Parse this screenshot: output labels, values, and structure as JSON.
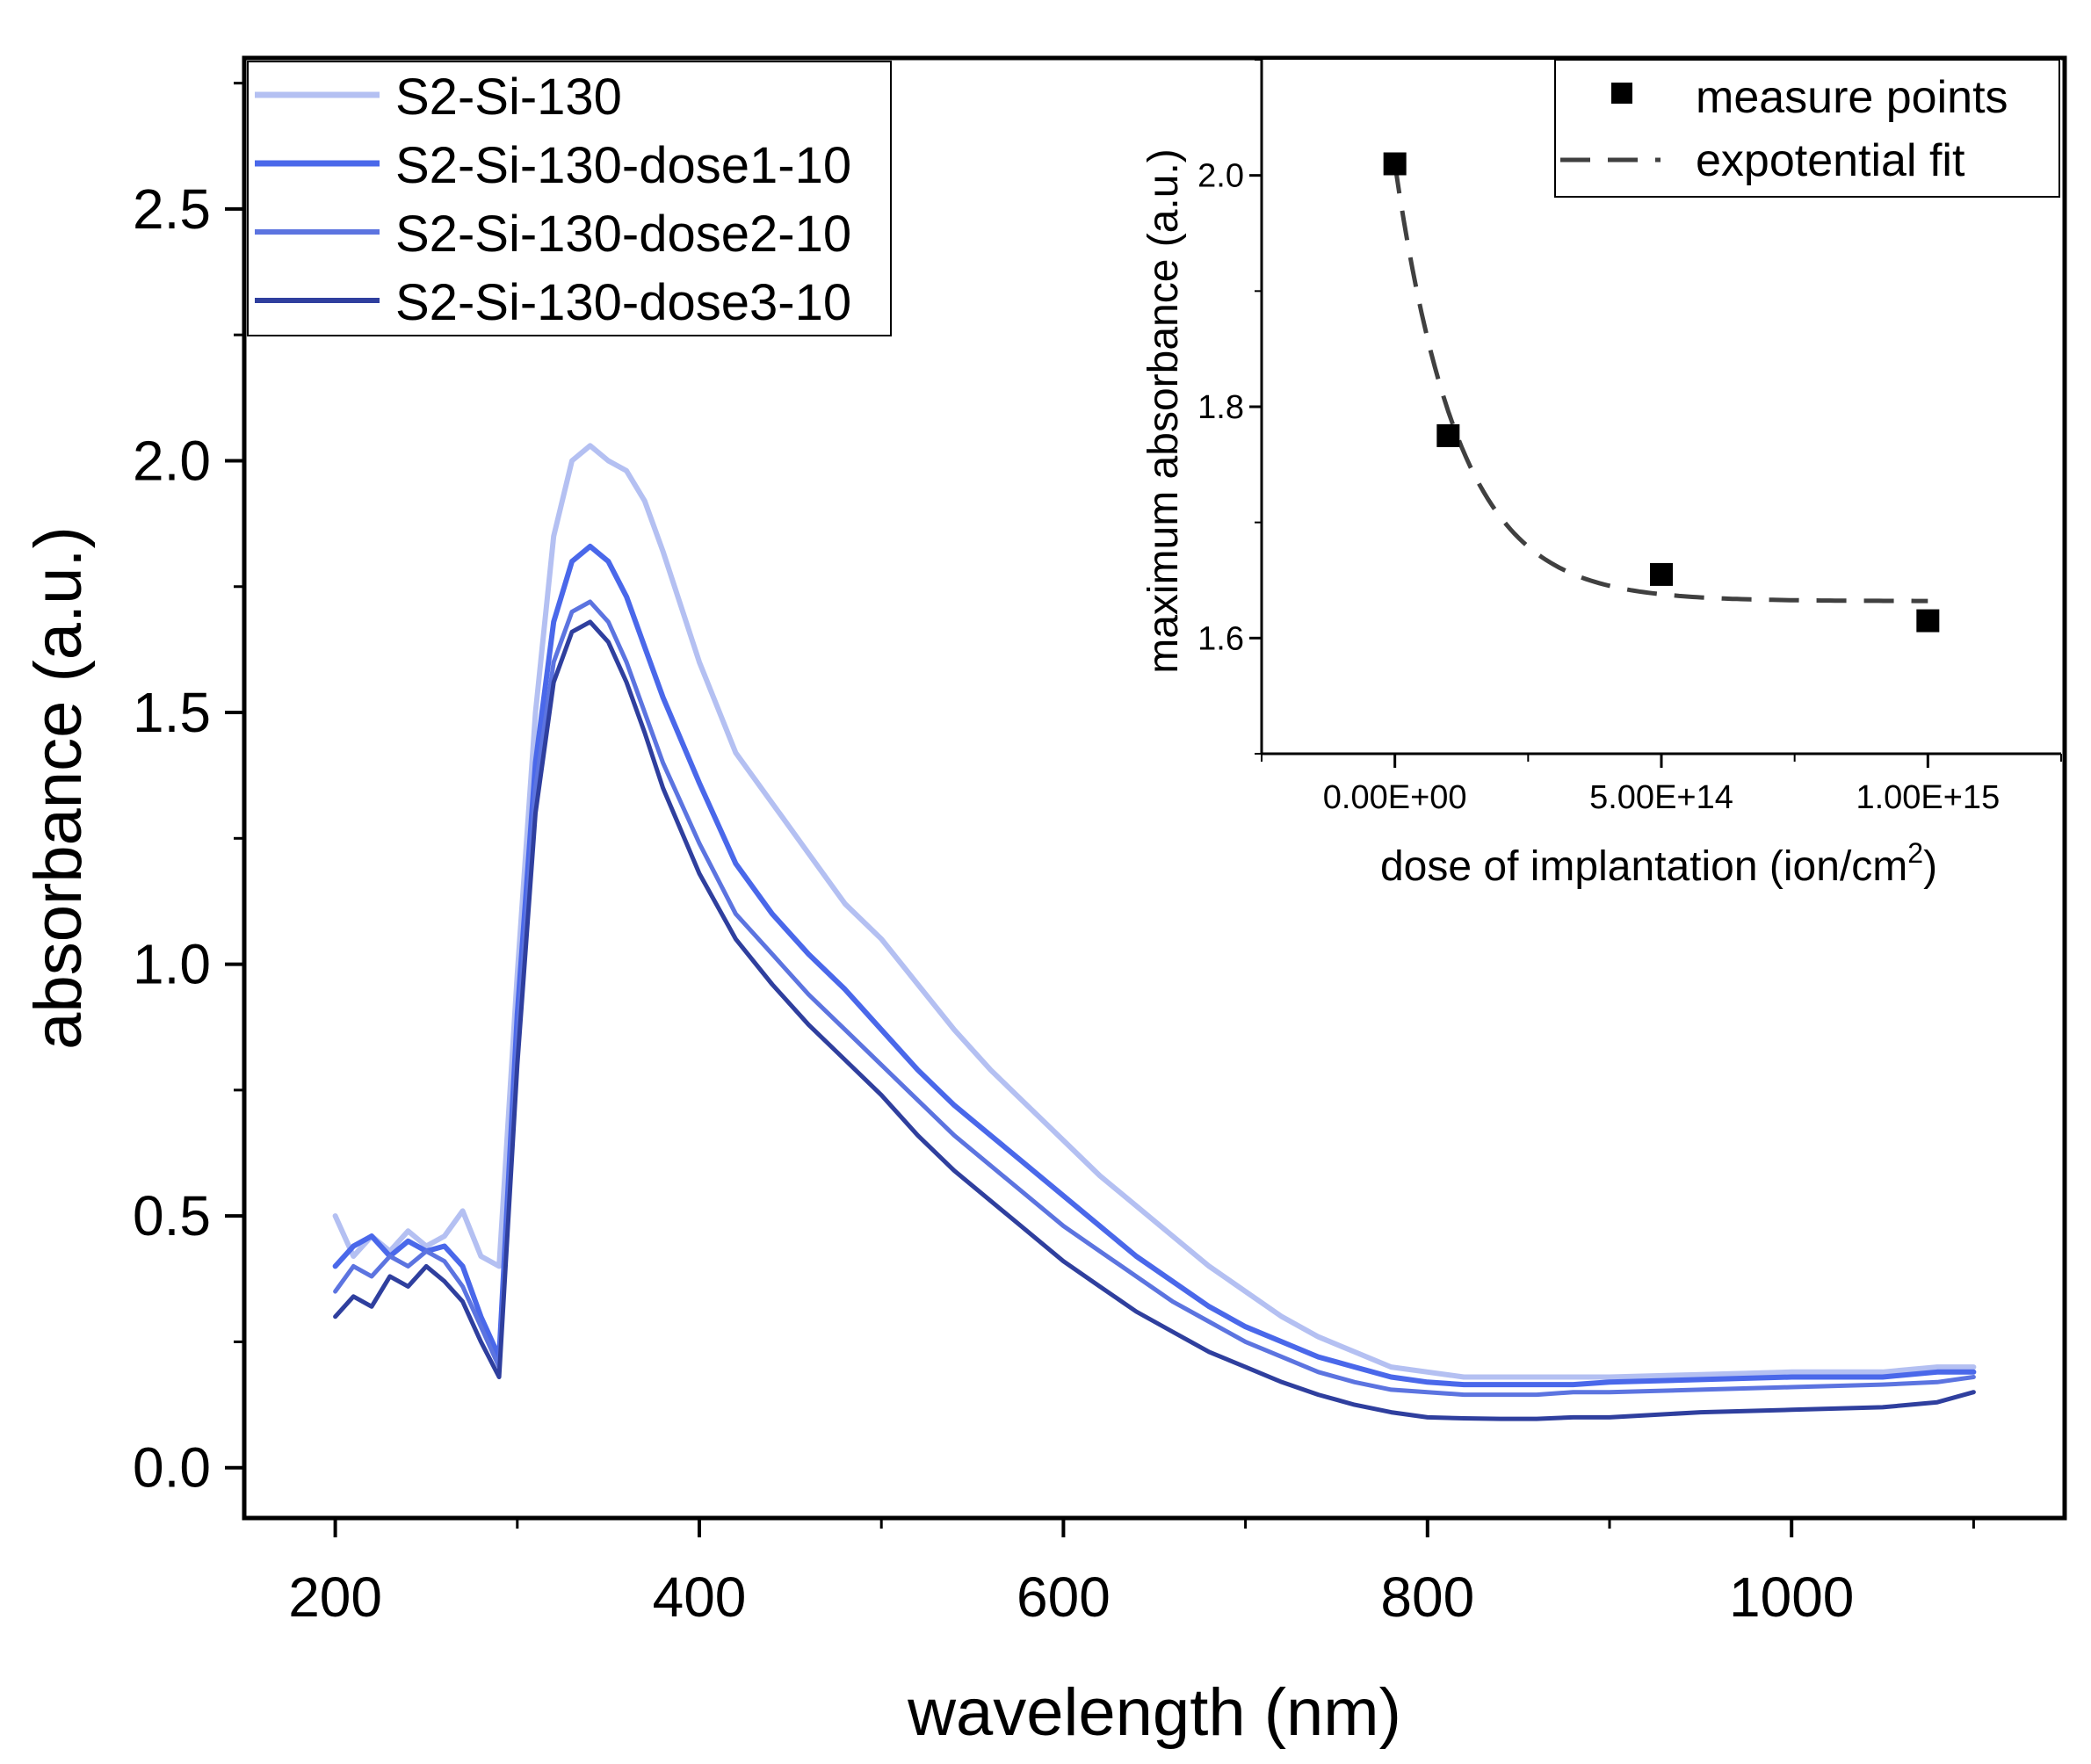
{
  "chart_data": [
    {
      "type": "line",
      "name": "main",
      "xlabel": "wavelength (nm)",
      "ylabel": "absorbance (a.u.)",
      "xlim": [
        150,
        1150
      ],
      "ylim": [
        -0.1,
        2.8
      ],
      "xticks": [
        200,
        400,
        600,
        800,
        1000
      ],
      "yticks": [
        0.0,
        0.5,
        1.0,
        1.5,
        2.0,
        2.5
      ],
      "xtick_labels": [
        "200",
        "400",
        "600",
        "800",
        "1000"
      ],
      "ytick_labels": [
        "0.0",
        "0.5",
        "1.0",
        "1.5",
        "2.0",
        "2.5"
      ],
      "legend_position": "top-left",
      "series": [
        {
          "name": "S2-Si-130",
          "color": "#b4c0f2",
          "x": [
            200,
            210,
            220,
            230,
            240,
            250,
            260,
            270,
            280,
            290,
            300,
            310,
            320,
            330,
            340,
            350,
            360,
            370,
            380,
            400,
            420,
            440,
            460,
            480,
            500,
            520,
            540,
            560,
            580,
            600,
            620,
            640,
            660,
            680,
            700,
            720,
            740,
            760,
            780,
            800,
            820,
            840,
            860,
            880,
            900,
            950,
            1000,
            1050,
            1080,
            1100
          ],
          "y": [
            0.5,
            0.42,
            0.46,
            0.43,
            0.47,
            0.44,
            0.46,
            0.51,
            0.42,
            0.4,
            0.98,
            1.5,
            1.85,
            2.0,
            2.03,
            2.0,
            1.98,
            1.92,
            1.82,
            1.6,
            1.42,
            1.32,
            1.22,
            1.12,
            1.05,
            0.96,
            0.87,
            0.79,
            0.72,
            0.65,
            0.58,
            0.52,
            0.46,
            0.4,
            0.35,
            0.3,
            0.26,
            0.23,
            0.2,
            0.19,
            0.18,
            0.18,
            0.18,
            0.18,
            0.18,
            0.185,
            0.19,
            0.19,
            0.2,
            0.2
          ]
        },
        {
          "name": "S2-Si-130-dose1-10",
          "color": "#4a68ea",
          "x": [
            200,
            210,
            220,
            230,
            240,
            250,
            260,
            270,
            280,
            290,
            300,
            310,
            320,
            330,
            340,
            350,
            360,
            370,
            380,
            400,
            420,
            440,
            460,
            480,
            500,
            520,
            540,
            560,
            580,
            600,
            620,
            640,
            660,
            680,
            700,
            720,
            740,
            760,
            780,
            800,
            820,
            840,
            860,
            880,
            900,
            950,
            1000,
            1050,
            1080,
            1100
          ],
          "y": [
            0.4,
            0.44,
            0.46,
            0.42,
            0.45,
            0.43,
            0.44,
            0.4,
            0.3,
            0.22,
            0.9,
            1.4,
            1.68,
            1.8,
            1.83,
            1.8,
            1.73,
            1.63,
            1.53,
            1.36,
            1.2,
            1.1,
            1.02,
            0.95,
            0.87,
            0.79,
            0.72,
            0.66,
            0.6,
            0.54,
            0.48,
            0.42,
            0.37,
            0.32,
            0.28,
            0.25,
            0.22,
            0.2,
            0.18,
            0.17,
            0.165,
            0.165,
            0.165,
            0.165,
            0.17,
            0.175,
            0.18,
            0.18,
            0.19,
            0.19
          ]
        },
        {
          "name": "S2-Si-130-dose2-10",
          "color": "#5c74e0",
          "x": [
            200,
            210,
            220,
            230,
            240,
            250,
            260,
            270,
            280,
            290,
            300,
            310,
            320,
            330,
            340,
            350,
            360,
            370,
            380,
            400,
            420,
            440,
            460,
            480,
            500,
            520,
            540,
            560,
            580,
            600,
            620,
            640,
            660,
            680,
            700,
            720,
            740,
            760,
            780,
            800,
            820,
            840,
            860,
            880,
            900,
            950,
            1000,
            1050,
            1080,
            1100
          ],
          "y": [
            0.35,
            0.4,
            0.38,
            0.42,
            0.4,
            0.43,
            0.41,
            0.36,
            0.28,
            0.2,
            0.85,
            1.35,
            1.6,
            1.7,
            1.72,
            1.68,
            1.6,
            1.5,
            1.4,
            1.24,
            1.1,
            1.02,
            0.94,
            0.87,
            0.8,
            0.73,
            0.66,
            0.6,
            0.54,
            0.48,
            0.43,
            0.38,
            0.33,
            0.29,
            0.25,
            0.22,
            0.19,
            0.17,
            0.155,
            0.15,
            0.145,
            0.145,
            0.145,
            0.15,
            0.15,
            0.155,
            0.16,
            0.165,
            0.17,
            0.18
          ]
        },
        {
          "name": "S2-Si-130-dose3-10",
          "color": "#2f3f9e",
          "x": [
            200,
            210,
            220,
            230,
            240,
            250,
            260,
            270,
            280,
            290,
            300,
            310,
            320,
            330,
            340,
            350,
            360,
            370,
            380,
            400,
            420,
            440,
            460,
            480,
            500,
            520,
            540,
            560,
            580,
            600,
            620,
            640,
            660,
            680,
            700,
            720,
            740,
            760,
            780,
            800,
            820,
            840,
            860,
            880,
            900,
            950,
            1000,
            1050,
            1080,
            1100
          ],
          "y": [
            0.3,
            0.34,
            0.32,
            0.38,
            0.36,
            0.4,
            0.37,
            0.33,
            0.25,
            0.18,
            0.8,
            1.3,
            1.56,
            1.66,
            1.68,
            1.64,
            1.56,
            1.46,
            1.35,
            1.18,
            1.05,
            0.96,
            0.88,
            0.81,
            0.74,
            0.66,
            0.59,
            0.53,
            0.47,
            0.41,
            0.36,
            0.31,
            0.27,
            0.23,
            0.2,
            0.17,
            0.145,
            0.125,
            0.11,
            0.1,
            0.098,
            0.097,
            0.097,
            0.1,
            0.1,
            0.11,
            0.115,
            0.12,
            0.13,
            0.15
          ]
        }
      ]
    },
    {
      "type": "scatter",
      "name": "inset",
      "xlabel_main": "dose of implantation (ion/cm",
      "xlabel_sup": "2",
      "xlabel_end": ")",
      "ylabel": "maximum absorbance (a.u.)",
      "xlim": [
        -250000000000000.0,
        1250000000000000.0
      ],
      "ylim": [
        1.5,
        2.1
      ],
      "xticks": [
        0,
        500000000000000.0,
        1000000000000000.0
      ],
      "xtick_labels": [
        "0.00E+00",
        "5.00E+14",
        "1.00E+15"
      ],
      "yticks": [
        1.6,
        1.8,
        2.0
      ],
      "ytick_labels": [
        "1.6",
        "1.8",
        "2.0"
      ],
      "legend_position": "top-right",
      "points": {
        "name": "measure points",
        "color": "#000000",
        "x": [
          0,
          100000000000000.0,
          500000000000000.0,
          1000000000000000.0
        ],
        "y": [
          2.01,
          1.775,
          1.655,
          1.615
        ]
      },
      "fit": {
        "name": "expotential fit",
        "color": "#404040",
        "y0": 1.632,
        "A": 0.378,
        "t": 120000000000000.0
      }
    }
  ]
}
